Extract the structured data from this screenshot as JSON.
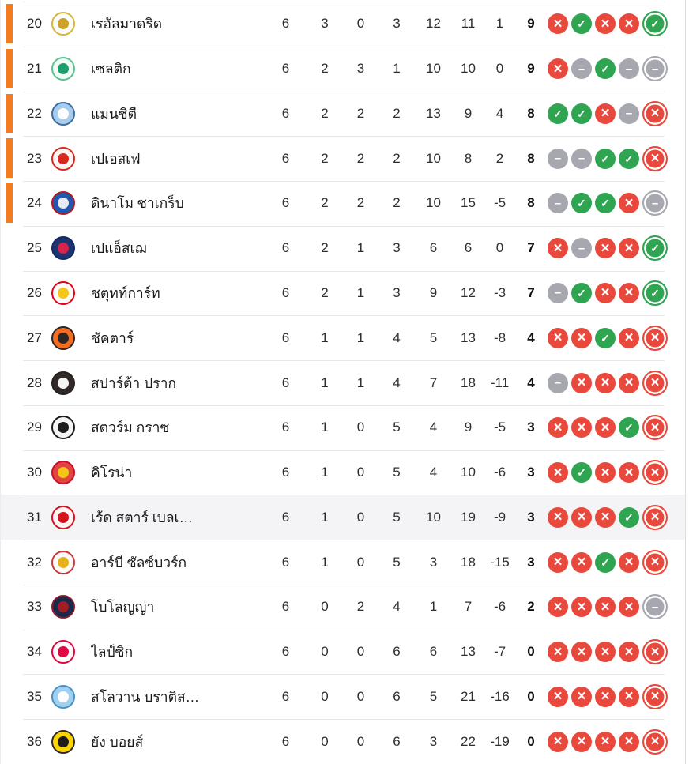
{
  "colors": {
    "accent_orange": "#f47b20",
    "win_green": "#2fa552",
    "loss_red": "#e8493c",
    "draw_gray": "#a7a7b0",
    "divider": "#e8e8ea",
    "highlight_bg": "#f4f4f6",
    "text": "#232326"
  },
  "form_style": {
    "glyphs": {
      "W": "✓",
      "D": "–",
      "L": "×"
    },
    "fill": {
      "W": "#2fa552",
      "D": "#a7a7b0",
      "L": "#e8493c"
    },
    "names": {
      "W": "form-win-icon",
      "D": "form-draw-icon",
      "L": "form-loss-icon"
    }
  },
  "standings": {
    "rows": [
      {
        "pos": "20",
        "team": "เรอัลมาดริด",
        "played": "6",
        "won": "3",
        "drawn": "0",
        "lost": "3",
        "gf": "12",
        "ga": "11",
        "gd": "1",
        "pts": "9",
        "playoff_zone": true,
        "highlighted": false,
        "form": [
          "L",
          "W",
          "L",
          "L",
          "W"
        ],
        "logo": {
          "ring": "#d9b43a",
          "fill": "#fdfdfb",
          "dot": "#c9a227"
        }
      },
      {
        "pos": "21",
        "team": "เซลติก",
        "played": "6",
        "won": "2",
        "drawn": "3",
        "lost": "1",
        "gf": "10",
        "ga": "10",
        "gd": "0",
        "pts": "9",
        "playoff_zone": true,
        "highlighted": false,
        "form": [
          "L",
          "D",
          "W",
          "D",
          "D"
        ],
        "logo": {
          "ring": "#5bc093",
          "fill": "#f2fbf6",
          "dot": "#1d9e6b"
        }
      },
      {
        "pos": "22",
        "team": "แมนซิตี",
        "played": "6",
        "won": "2",
        "drawn": "2",
        "lost": "2",
        "gf": "13",
        "ga": "9",
        "gd": "4",
        "pts": "8",
        "playoff_zone": true,
        "highlighted": false,
        "form": [
          "W",
          "W",
          "L",
          "D",
          "L"
        ],
        "logo": {
          "ring": "#3f6f9e",
          "fill": "#a8cdec",
          "dot": "#fdfdfd"
        }
      },
      {
        "pos": "23",
        "team": "เปเอสเฟ",
        "played": "6",
        "won": "2",
        "drawn": "2",
        "lost": "2",
        "gf": "10",
        "ga": "8",
        "gd": "2",
        "pts": "8",
        "playoff_zone": true,
        "highlighted": false,
        "form": [
          "D",
          "D",
          "W",
          "W",
          "L"
        ],
        "logo": {
          "ring": "#d6291e",
          "fill": "#fdf5f4",
          "dot": "#d6291e"
        }
      },
      {
        "pos": "24",
        "team": "ดินาโม ซาเกร็บ",
        "played": "6",
        "won": "2",
        "drawn": "2",
        "lost": "2",
        "gf": "10",
        "ga": "15",
        "gd": "-5",
        "pts": "8",
        "playoff_zone": true,
        "highlighted": false,
        "form": [
          "D",
          "W",
          "W",
          "L",
          "D"
        ],
        "logo": {
          "ring": "#b01b24",
          "fill": "#2257ae",
          "dot": "#e8ebf2"
        }
      },
      {
        "pos": "25",
        "team": "เปแอ็สเฌ",
        "played": "6",
        "won": "2",
        "drawn": "1",
        "lost": "3",
        "gf": "6",
        "ga": "6",
        "gd": "0",
        "pts": "7",
        "playoff_zone": false,
        "highlighted": false,
        "form": [
          "L",
          "D",
          "L",
          "L",
          "W"
        ],
        "logo": {
          "ring": "#16295e",
          "fill": "#1d3472",
          "dot": "#d9234a"
        }
      },
      {
        "pos": "26",
        "team": "ชตุทท์การ์ท",
        "played": "6",
        "won": "2",
        "drawn": "1",
        "lost": "3",
        "gf": "9",
        "ga": "12",
        "gd": "-3",
        "pts": "7",
        "playoff_zone": false,
        "highlighted": false,
        "form": [
          "D",
          "W",
          "L",
          "L",
          "W"
        ],
        "logo": {
          "ring": "#e2001a",
          "fill": "#fdfcf7",
          "dot": "#f5c518"
        }
      },
      {
        "pos": "27",
        "team": "ชัคตาร์",
        "played": "6",
        "won": "1",
        "drawn": "1",
        "lost": "4",
        "gf": "5",
        "ga": "13",
        "gd": "-8",
        "pts": "4",
        "playoff_zone": false,
        "highlighted": false,
        "form": [
          "L",
          "L",
          "W",
          "L",
          "L"
        ],
        "logo": {
          "ring": "#2b2523",
          "fill": "#f36c21",
          "dot": "#2b2523"
        }
      },
      {
        "pos": "28",
        "team": "สปาร์ต้า ปราก",
        "played": "6",
        "won": "1",
        "drawn": "1",
        "lost": "4",
        "gf": "7",
        "ga": "18",
        "gd": "-11",
        "pts": "4",
        "playoff_zone": false,
        "highlighted": false,
        "form": [
          "D",
          "L",
          "L",
          "L",
          "L"
        ],
        "logo": {
          "ring": "#27211f",
          "fill": "#312a28",
          "dot": "#f5f5f5"
        }
      },
      {
        "pos": "29",
        "team": "สตวร์ม กราซ",
        "played": "6",
        "won": "1",
        "drawn": "0",
        "lost": "5",
        "gf": "4",
        "ga": "9",
        "gd": "-5",
        "pts": "3",
        "playoff_zone": false,
        "highlighted": false,
        "form": [
          "L",
          "L",
          "L",
          "W",
          "L"
        ],
        "logo": {
          "ring": "#1c1c1c",
          "fill": "#f4f4f4",
          "dot": "#1c1c1c"
        }
      },
      {
        "pos": "30",
        "team": "คิโรน่า",
        "played": "6",
        "won": "1",
        "drawn": "0",
        "lost": "5",
        "gf": "4",
        "ga": "10",
        "gd": "-6",
        "pts": "3",
        "playoff_zone": false,
        "highlighted": false,
        "form": [
          "L",
          "W",
          "L",
          "L",
          "L"
        ],
        "logo": {
          "ring": "#c8102e",
          "fill": "#e2453f",
          "dot": "#f5c518"
        }
      },
      {
        "pos": "31",
        "team": "เร้ด สตาร์ เบลเ…",
        "played": "6",
        "won": "1",
        "drawn": "0",
        "lost": "5",
        "gf": "10",
        "ga": "19",
        "gd": "-9",
        "pts": "3",
        "playoff_zone": false,
        "highlighted": true,
        "form": [
          "L",
          "L",
          "L",
          "W",
          "L"
        ],
        "logo": {
          "ring": "#d5121f",
          "fill": "#fdf3f3",
          "dot": "#d5121f"
        }
      },
      {
        "pos": "32",
        "team": "อาร์บี ซัลซ์บวร์ก",
        "played": "6",
        "won": "1",
        "drawn": "0",
        "lost": "5",
        "gf": "3",
        "ga": "18",
        "gd": "-15",
        "pts": "3",
        "playoff_zone": false,
        "highlighted": false,
        "form": [
          "L",
          "L",
          "W",
          "L",
          "L"
        ],
        "logo": {
          "ring": "#c93a38",
          "fill": "#fdfbfa",
          "dot": "#e6b31e"
        }
      },
      {
        "pos": "33",
        "team": "โบโลญญ่า",
        "played": "6",
        "won": "0",
        "drawn": "2",
        "lost": "4",
        "gf": "1",
        "ga": "7",
        "gd": "-6",
        "pts": "2",
        "playoff_zone": false,
        "highlighted": false,
        "form": [
          "L",
          "L",
          "L",
          "L",
          "D"
        ],
        "logo": {
          "ring": "#8c1b2f",
          "fill": "#1b2a4a",
          "dot": "#a21c26"
        }
      },
      {
        "pos": "34",
        "team": "ไลป์ซิก",
        "played": "6",
        "won": "0",
        "drawn": "0",
        "lost": "6",
        "gf": "6",
        "ga": "13",
        "gd": "-7",
        "pts": "0",
        "playoff_zone": false,
        "highlighted": false,
        "form": [
          "L",
          "L",
          "L",
          "L",
          "L"
        ],
        "logo": {
          "ring": "#dd0741",
          "fill": "#fdfbfb",
          "dot": "#dd0741"
        }
      },
      {
        "pos": "35",
        "team": "สโลวาน บราติส…",
        "played": "6",
        "won": "0",
        "drawn": "0",
        "lost": "6",
        "gf": "5",
        "ga": "21",
        "gd": "-16",
        "pts": "0",
        "playoff_zone": false,
        "highlighted": false,
        "form": [
          "L",
          "L",
          "L",
          "L",
          "L"
        ],
        "logo": {
          "ring": "#4a90c4",
          "fill": "#9fd0ef",
          "dot": "#fdfdfd"
        }
      },
      {
        "pos": "36",
        "team": "ยัง บอยส์",
        "played": "6",
        "won": "0",
        "drawn": "0",
        "lost": "6",
        "gf": "3",
        "ga": "22",
        "gd": "-19",
        "pts": "0",
        "playoff_zone": false,
        "highlighted": false,
        "form": [
          "L",
          "L",
          "L",
          "L",
          "L"
        ],
        "logo": {
          "ring": "#2a2a2a",
          "fill": "#fcd405",
          "dot": "#1c1c1c"
        }
      }
    ]
  }
}
